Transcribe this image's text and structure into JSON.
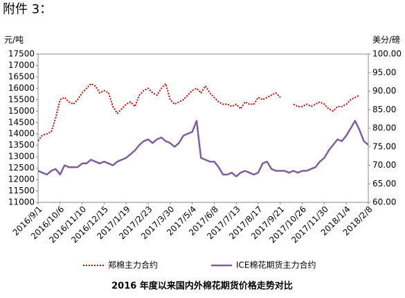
{
  "header": "附件 3：",
  "chart_data": {
    "type": "line",
    "caption": "2016 年度以来国内外棉花期货价格走势对比",
    "y_label": "元/吨",
    "y2_label": "美分/磅",
    "categories": [
      "2016/9/1",
      null,
      null,
      null,
      null,
      "2016/10/6",
      null,
      null,
      null,
      null,
      "2016/11/10",
      null,
      null,
      null,
      null,
      "2016/12/15",
      null,
      null,
      null,
      null,
      "2017/1/19",
      null,
      null,
      null,
      null,
      "2017/2/23",
      null,
      null,
      null,
      null,
      "2017/3/30",
      null,
      null,
      null,
      null,
      "2017/5/4",
      null,
      null,
      null,
      null,
      "2017/6/8",
      null,
      null,
      null,
      null,
      "2017/7/13",
      null,
      null,
      null,
      null,
      "2017/8/17",
      null,
      null,
      null,
      null,
      "2017/9/21",
      null,
      null,
      null,
      null,
      "2017/10/26",
      null,
      null,
      null,
      null,
      "2017/11/30",
      null,
      null,
      null,
      null,
      "2018/1/4",
      null,
      null,
      null,
      null,
      "2018/2/8"
    ],
    "ylim": [
      11000,
      17500
    ],
    "yticks": [
      11000,
      11500,
      12000,
      12500,
      13000,
      13500,
      14000,
      14500,
      15000,
      15500,
      16000,
      16500,
      17000,
      17500
    ],
    "y2lim": [
      60,
      100
    ],
    "y2ticks": [
      {
        "value": 60,
        "label": "60.00"
      },
      {
        "value": 65,
        "label": "65.00"
      },
      {
        "value": 70,
        "label": "70.00"
      },
      {
        "value": 75,
        "label": "75.00"
      },
      {
        "value": 80,
        "label": "80.00"
      },
      {
        "value": 85,
        "label": "85.00"
      },
      {
        "value": 90,
        "label": "90.00"
      },
      {
        "value": 95,
        "label": "95.00"
      },
      {
        "value": 100,
        "label": "100.00"
      }
    ],
    "legend": "bottom",
    "series": [
      {
        "name": "郑棉主力合约",
        "color": "#c00000",
        "dash": "dotted",
        "values": [
          13700,
          13950,
          14000,
          14100,
          14700,
          15500,
          15600,
          15400,
          15300,
          15500,
          15800,
          16000,
          16200,
          16100,
          15800,
          15900,
          15800,
          15200,
          14900,
          15100,
          15300,
          15400,
          15200,
          15700,
          15900,
          16000,
          15800,
          15700,
          16000,
          16200,
          15500,
          15300,
          15400,
          15500,
          15700,
          15900,
          16000,
          15800,
          16100,
          15800,
          15600,
          15400,
          15300,
          15300,
          15200,
          15300,
          15100,
          15400,
          15300,
          15300,
          15600,
          15500,
          15600,
          15700,
          15800,
          15600,
          null,
          null,
          15300,
          15200,
          15200,
          15300,
          15200,
          15300,
          15400,
          15300,
          15100,
          15000,
          15200,
          15200,
          15300,
          15500,
          15600,
          15700,
          null,
          null
        ]
      },
      {
        "name": "ICE棉花期货主力合约",
        "color": "#7d5f9b",
        "dash": "solid",
        "axis": "y2",
        "values": [
          68.5,
          68,
          67.5,
          68.5,
          69,
          67.5,
          70,
          69.5,
          69.5,
          69.5,
          70.5,
          70.5,
          71.5,
          71,
          70.5,
          71,
          70.5,
          70,
          71,
          71.5,
          72,
          73,
          74,
          75.5,
          76.5,
          77,
          76,
          77,
          77.5,
          76.5,
          76,
          75,
          76,
          78,
          78.5,
          79,
          82,
          72,
          71.5,
          71,
          71,
          69.5,
          67.5,
          67.5,
          68,
          67,
          68,
          68.5,
          68,
          67.5,
          68,
          70.5,
          71,
          69,
          68.5,
          68.5,
          68.5,
          68,
          68.5,
          68,
          68.5,
          68.5,
          69,
          69.5,
          71,
          72,
          74,
          75.5,
          77,
          76.5,
          78,
          80,
          82,
          79.5,
          76.5,
          75.5
        ]
      }
    ]
  }
}
